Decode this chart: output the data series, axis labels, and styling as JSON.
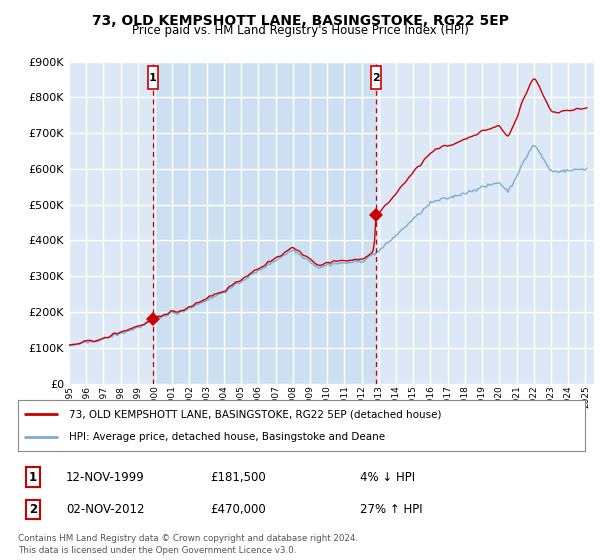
{
  "title": "73, OLD KEMPSHOTT LANE, BASINGSTOKE, RG22 5EP",
  "subtitle": "Price paid vs. HM Land Registry's House Price Index (HPI)",
  "legend_line1": "73, OLD KEMPSHOTT LANE, BASINGSTOKE, RG22 5EP (detached house)",
  "legend_line2": "HPI: Average price, detached house, Basingstoke and Deane",
  "sale1_date": "12-NOV-1999",
  "sale1_price": 181500,
  "sale1_label": "4% ↓ HPI",
  "sale2_date": "02-NOV-2012",
  "sale2_price": 470000,
  "sale2_label": "27% ↑ HPI",
  "footnote": "Contains HM Land Registry data © Crown copyright and database right 2024.\nThis data is licensed under the Open Government Licence v3.0.",
  "ylim": [
    0,
    900000
  ],
  "yticks": [
    0,
    100000,
    200000,
    300000,
    400000,
    500000,
    600000,
    700000,
    800000,
    900000
  ],
  "background_color": "#dce8f5",
  "highlight_color": "#c8ddf0",
  "grid_color": "#ffffff",
  "hpi_color": "#7aadd4",
  "price_color": "#cc0000",
  "vline_color": "#cc0000",
  "marker_color": "#cc0000",
  "box_color": "#cc0000",
  "sale1_year": 1999.87,
  "sale2_year": 2012.84,
  "xlim_start": 1995,
  "xlim_end": 2025.5
}
